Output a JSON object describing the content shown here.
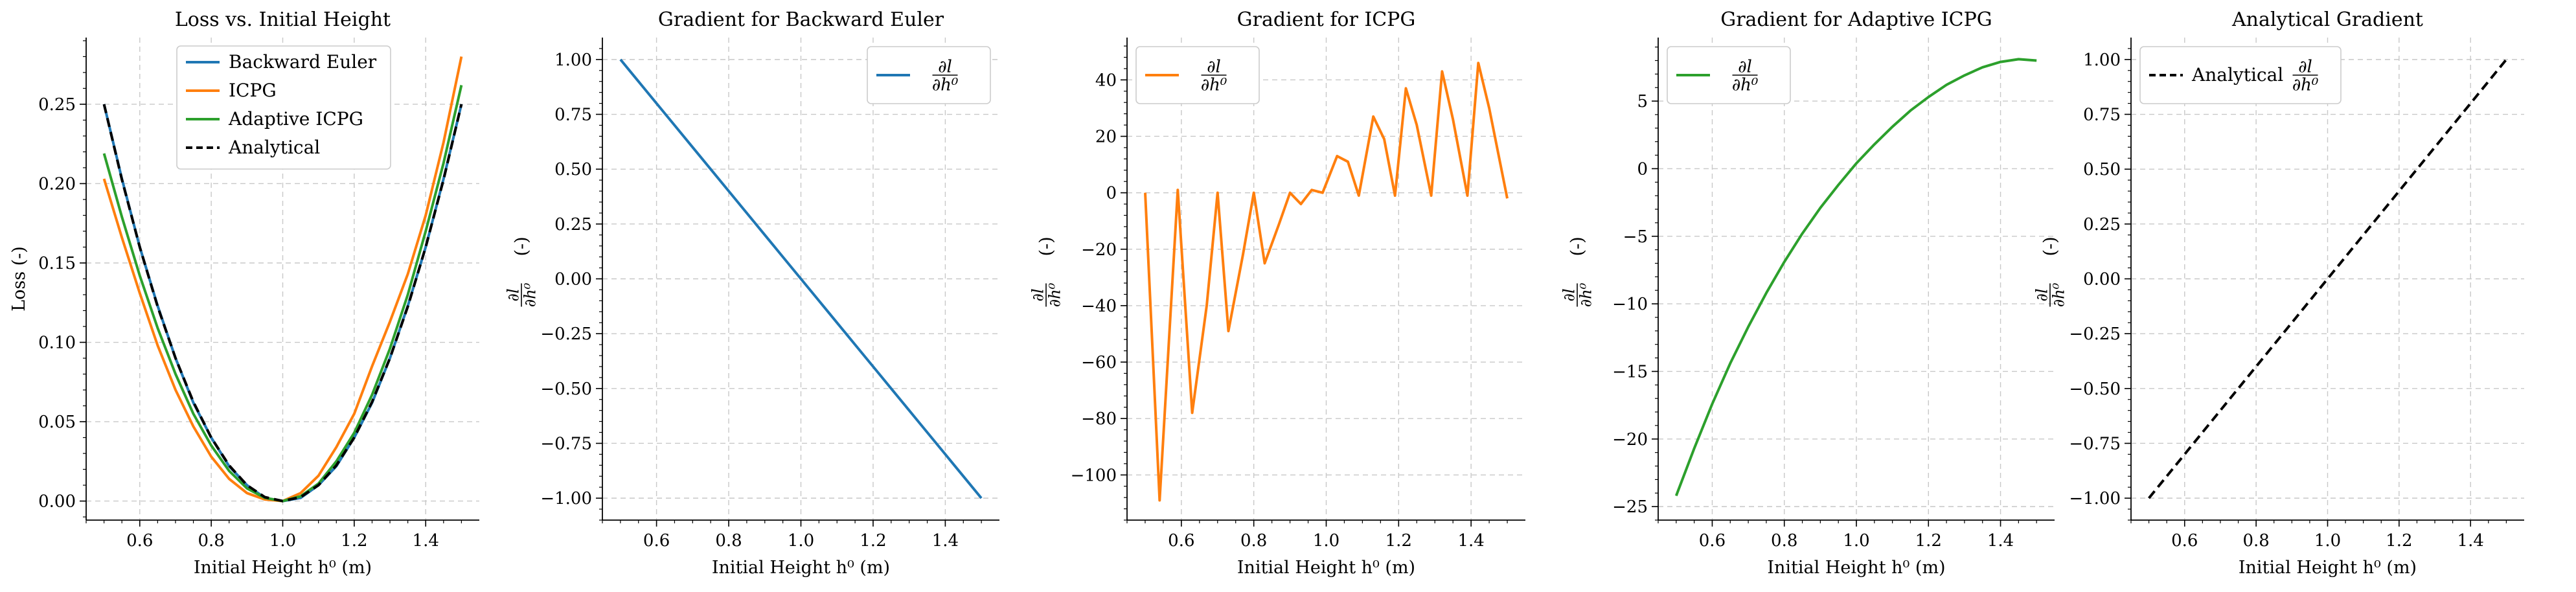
{
  "colors": {
    "blue": "#1f77b4",
    "orange": "#ff7f0e",
    "green": "#2ca02c",
    "black": "#000000",
    "grid": "#c8c8c8"
  },
  "chart_data": [
    {
      "type": "line",
      "title": "Loss vs. Initial Height",
      "xlabel": "Initial Height h⁰ (m)",
      "ylabel": "Loss (-)",
      "xlim": [
        0.45,
        1.55
      ],
      "ylim": [
        -0.012,
        0.292
      ],
      "xticks": [
        0.6,
        0.8,
        1.0,
        1.2,
        1.4
      ],
      "xtick_labels": [
        "0.6",
        "0.8",
        "1.0",
        "1.2",
        "1.4"
      ],
      "yticks": [
        0.0,
        0.05,
        0.1,
        0.15,
        0.2,
        0.25
      ],
      "ytick_labels": [
        "0.00",
        "0.05",
        "0.10",
        "0.15",
        "0.20",
        "0.25"
      ],
      "grid": true,
      "legend": "top-center",
      "series": [
        {
          "name": "Backward Euler",
          "color": "#1f77b4",
          "dash": false,
          "x": [
            0.5,
            0.55,
            0.6,
            0.65,
            0.7,
            0.75,
            0.8,
            0.85,
            0.9,
            0.95,
            1.0,
            1.05,
            1.1,
            1.15,
            1.2,
            1.25,
            1.3,
            1.35,
            1.4,
            1.45,
            1.5
          ],
          "y": [
            0.25,
            0.203,
            0.16,
            0.123,
            0.09,
            0.062,
            0.04,
            0.022,
            0.01,
            0.002,
            0.0,
            0.002,
            0.01,
            0.022,
            0.04,
            0.062,
            0.09,
            0.123,
            0.16,
            0.203,
            0.25
          ]
        },
        {
          "name": "ICPG",
          "color": "#ff7f0e",
          "dash": false,
          "x": [
            0.5,
            0.55,
            0.6,
            0.65,
            0.7,
            0.75,
            0.8,
            0.85,
            0.9,
            0.95,
            1.0,
            1.05,
            1.1,
            1.15,
            1.2,
            1.25,
            1.3,
            1.35,
            1.4,
            1.45,
            1.5
          ],
          "y": [
            0.203,
            0.166,
            0.131,
            0.098,
            0.07,
            0.047,
            0.028,
            0.014,
            0.005,
            0.001,
            0.0,
            0.005,
            0.016,
            0.034,
            0.055,
            0.085,
            0.113,
            0.143,
            0.18,
            0.226,
            0.28
          ]
        },
        {
          "name": "Adaptive ICPG",
          "color": "#2ca02c",
          "dash": false,
          "x": [
            0.5,
            0.55,
            0.6,
            0.65,
            0.7,
            0.75,
            0.8,
            0.85,
            0.9,
            0.95,
            1.0,
            1.05,
            1.1,
            1.15,
            1.2,
            1.25,
            1.3,
            1.35,
            1.4,
            1.45,
            1.5
          ],
          "y": [
            0.219,
            0.179,
            0.142,
            0.109,
            0.08,
            0.055,
            0.035,
            0.019,
            0.008,
            0.002,
            0.0,
            0.003,
            0.011,
            0.025,
            0.043,
            0.067,
            0.096,
            0.13,
            0.17,
            0.213,
            0.262
          ]
        },
        {
          "name": "Analytical",
          "color": "#000000",
          "dash": true,
          "x": [
            0.5,
            0.55,
            0.6,
            0.65,
            0.7,
            0.75,
            0.8,
            0.85,
            0.9,
            0.95,
            1.0,
            1.05,
            1.1,
            1.15,
            1.2,
            1.25,
            1.3,
            1.35,
            1.4,
            1.45,
            1.5
          ],
          "y": [
            0.25,
            0.2025,
            0.16,
            0.1225,
            0.09,
            0.0625,
            0.04,
            0.0225,
            0.01,
            0.0025,
            0.0,
            0.0025,
            0.01,
            0.0225,
            0.04,
            0.0625,
            0.09,
            0.1225,
            0.16,
            0.2025,
            0.25
          ]
        }
      ]
    },
    {
      "type": "line",
      "title": "Gradient for Backward Euler",
      "xlabel": "Initial Height h⁰ (m)",
      "ylabel": "∂l/∂h⁰ (-)",
      "xlim": [
        0.45,
        1.55
      ],
      "ylim": [
        -1.1,
        1.1
      ],
      "xticks": [
        0.6,
        0.8,
        1.0,
        1.2,
        1.4
      ],
      "xtick_labels": [
        "0.6",
        "0.8",
        "1.0",
        "1.2",
        "1.4"
      ],
      "yticks": [
        -1.0,
        -0.75,
        -0.5,
        -0.25,
        0.0,
        0.25,
        0.5,
        0.75,
        1.0
      ],
      "ytick_labels": [
        "−1.00",
        "−0.75",
        "−0.50",
        "−0.25",
        "0.00",
        "0.25",
        "0.50",
        "0.75",
        "1.00"
      ],
      "grid": true,
      "legend": "top-right",
      "series": [
        {
          "name": "∂l/∂h⁰",
          "color": "#1f77b4",
          "dash": false,
          "x": [
            0.5,
            0.525,
            0.55,
            0.6,
            0.625,
            0.65,
            0.7,
            0.725,
            0.75,
            0.8,
            0.825,
            0.85,
            0.9,
            0.925,
            0.95,
            1.0,
            1.025,
            1.05,
            1.1,
            1.125,
            1.15,
            1.2,
            1.225,
            1.25,
            1.3,
            1.325,
            1.35,
            1.4,
            1.425,
            1.45,
            1.5
          ],
          "y": [
            1.0,
            0.95,
            0.9,
            0.8,
            0.75,
            0.7,
            0.6,
            0.55,
            0.5,
            0.4,
            0.35,
            0.3,
            0.2,
            0.15,
            0.1,
            0.0,
            -0.05,
            -0.1,
            -0.2,
            -0.25,
            -0.3,
            -0.4,
            -0.45,
            -0.5,
            -0.6,
            -0.65,
            -0.7,
            -0.8,
            -0.85,
            -0.9,
            -1.0
          ]
        }
      ]
    },
    {
      "type": "line",
      "title": "Gradient for ICPG",
      "xlabel": "Initial Height h⁰ (m)",
      "ylabel": "∂l/∂h⁰ (-)",
      "xlim": [
        0.45,
        1.55
      ],
      "ylim": [
        -116,
        55
      ],
      "xticks": [
        0.6,
        0.8,
        1.0,
        1.2,
        1.4
      ],
      "xtick_labels": [
        "0.6",
        "0.8",
        "1.0",
        "1.2",
        "1.4"
      ],
      "yticks": [
        -100,
        -80,
        -60,
        -40,
        -20,
        0,
        20,
        40
      ],
      "ytick_labels": [
        "−100",
        "−80",
        "−60",
        "−40",
        "−20",
        "0",
        "20",
        "40"
      ],
      "grid": true,
      "legend": "top-left",
      "series": [
        {
          "name": "∂l/∂h⁰",
          "color": "#ff7f0e",
          "dash": false,
          "x": [
            0.5,
            0.54,
            0.59,
            0.63,
            0.67,
            0.7,
            0.73,
            0.77,
            0.8,
            0.83,
            0.87,
            0.9,
            0.93,
            0.96,
            0.99,
            1.03,
            1.06,
            1.09,
            1.13,
            1.16,
            1.19,
            1.22,
            1.25,
            1.29,
            1.32,
            1.35,
            1.39,
            1.42,
            1.45,
            1.5
          ],
          "y": [
            0,
            -109,
            1,
            -78,
            -40,
            0,
            -49,
            -22,
            0,
            -25,
            -11,
            0,
            -4,
            1,
            0,
            13,
            11,
            -1,
            27,
            19,
            -1,
            37,
            24,
            -1,
            43,
            26,
            -1,
            46,
            30,
            -2
          ]
        }
      ]
    },
    {
      "type": "line",
      "title": "Gradient for Adaptive ICPG",
      "xlabel": "Initial Height h⁰ (m)",
      "ylabel": "∂l/∂h⁰ (-)",
      "xlim": [
        0.45,
        1.55
      ],
      "ylim": [
        -26,
        9.7
      ],
      "xticks": [
        0.6,
        0.8,
        1.0,
        1.2,
        1.4
      ],
      "xtick_labels": [
        "0.6",
        "0.8",
        "1.0",
        "1.2",
        "1.4"
      ],
      "yticks": [
        -25,
        -20,
        -15,
        -10,
        -5,
        0,
        5
      ],
      "ytick_labels": [
        "−25",
        "−20",
        "−15",
        "−10",
        "−5",
        "0",
        "5"
      ],
      "grid": true,
      "legend": "top-left",
      "series": [
        {
          "name": "∂l/∂h⁰",
          "color": "#2ca02c",
          "dash": false,
          "x": [
            0.5,
            0.55,
            0.6,
            0.65,
            0.7,
            0.75,
            0.8,
            0.85,
            0.9,
            0.95,
            1.0,
            1.05,
            1.1,
            1.15,
            1.2,
            1.25,
            1.3,
            1.35,
            1.4,
            1.45,
            1.5
          ],
          "y": [
            -24.2,
            -20.7,
            -17.4,
            -14.4,
            -11.7,
            -9.2,
            -6.9,
            -4.8,
            -2.9,
            -1.2,
            0.4,
            1.8,
            3.1,
            4.3,
            5.3,
            6.2,
            6.9,
            7.5,
            7.9,
            8.1,
            8.0
          ]
        }
      ]
    },
    {
      "type": "line",
      "title": "Analytical Gradient",
      "xlabel": "Initial Height h⁰ (m)",
      "ylabel": "∂l/∂h⁰ (-)",
      "xlim": [
        0.45,
        1.55
      ],
      "ylim": [
        -1.1,
        1.1
      ],
      "xticks": [
        0.6,
        0.8,
        1.0,
        1.2,
        1.4
      ],
      "xtick_labels": [
        "0.6",
        "0.8",
        "1.0",
        "1.2",
        "1.4"
      ],
      "yticks": [
        -1.0,
        -0.75,
        -0.5,
        -0.25,
        0.0,
        0.25,
        0.5,
        0.75,
        1.0
      ],
      "ytick_labels": [
        "−1.00",
        "−0.75",
        "−0.50",
        "−0.25",
        "0.00",
        "0.25",
        "0.50",
        "0.75",
        "1.00"
      ],
      "grid": true,
      "legend": "top-left",
      "series": [
        {
          "name": "Analytical ∂l/∂h⁰",
          "color": "#000000",
          "dash": true,
          "x": [
            0.5,
            1.5
          ],
          "y": [
            -1.0,
            1.0
          ]
        }
      ]
    }
  ]
}
